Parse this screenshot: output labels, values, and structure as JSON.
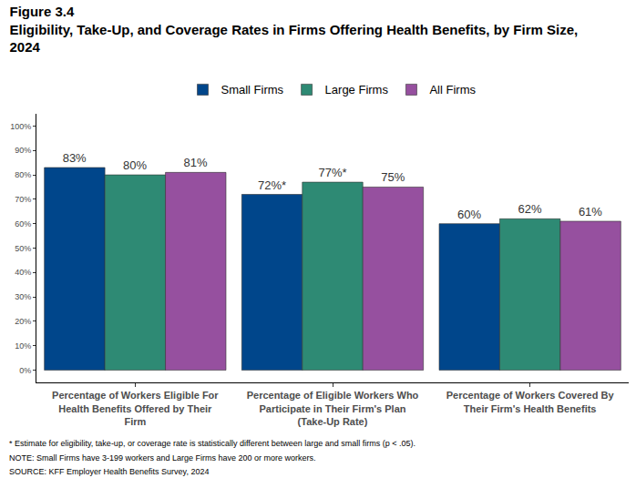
{
  "chart_data": {
    "type": "bar",
    "title": "Figure 3.4",
    "subtitle": "Eligibility, Take-Up, and Coverage Rates in Firms Offering Health Benefits, by Firm Size, 2024",
    "categories": [
      "Percentage of Workers Eligible For Health Benefits Offered by Their Firm",
      "Percentage of Eligible Workers Who Participate in Their Firm's Plan (Take-Up Rate)",
      "Percentage of Workers Covered By Their Firm's Health Benefits"
    ],
    "series": [
      {
        "name": "Small Firms",
        "color": "#00468b",
        "values": [
          83,
          72,
          60
        ],
        "value_labels": [
          "83%",
          "72%*",
          "60%"
        ]
      },
      {
        "name": "Large Firms",
        "color": "#2e8a74",
        "values": [
          80,
          77,
          62
        ],
        "value_labels": [
          "80%",
          "77%*",
          "62%"
        ]
      },
      {
        "name": "All Firms",
        "color": "#96509f",
        "values": [
          81,
          75,
          61
        ],
        "value_labels": [
          "81%",
          "75%",
          "61%"
        ]
      }
    ],
    "ylim": [
      -5,
      105
    ],
    "yticks": [
      {
        "value": 0,
        "label": "0%"
      },
      {
        "value": 10,
        "label": "10%"
      },
      {
        "value": 20,
        "label": "20%"
      },
      {
        "value": 30,
        "label": "30%"
      },
      {
        "value": 40,
        "label": "40%"
      },
      {
        "value": 50,
        "label": "50%"
      },
      {
        "value": 60,
        "label": "60%"
      },
      {
        "value": 70,
        "label": "70%"
      },
      {
        "value": 80,
        "label": "80%"
      },
      {
        "value": 90,
        "label": "90%"
      },
      {
        "value": 100,
        "label": "100%"
      }
    ],
    "grid": false,
    "legend": "top",
    "data_labels": true,
    "annotations": [
      "* Estimate for eligibility, take-up, or coverage rate is statistically different between large and small firms (p < .05).",
      "NOTE: Small Firms have 3-199 workers and Large Firms have 200 or more workers.",
      "SOURCE: KFF Employer Health Benefits Survey, 2024"
    ]
  }
}
